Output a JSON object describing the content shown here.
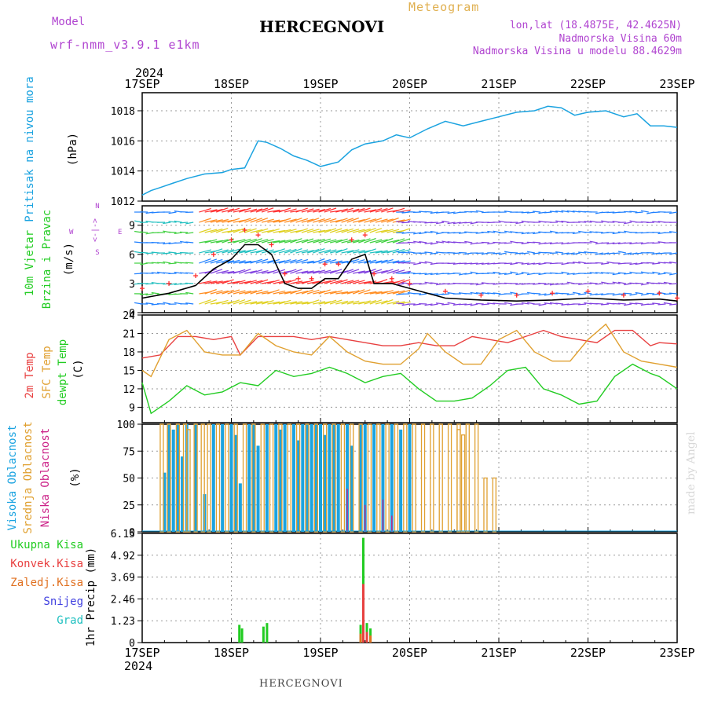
{
  "header": {
    "model_label": "Model",
    "model_name": "wrf-nmm_v3.9.1 e1km",
    "title": "HERCEGNOVI",
    "meteogram": "Meteogram",
    "lonlat": "lon,lat (18.4875E, 42.4625N)",
    "elevation": "Nadmorska Visina 60m",
    "model_elevation": "Nadmorska Visina u modelu 88.4629m",
    "year_top": "2024",
    "year_bottom": "2024",
    "footer_title": "HERCEGNOVI",
    "credit": "made by Angel"
  },
  "colors": {
    "pressure": "#1ba3e0",
    "wind_speed": "#000000",
    "gust": "#ff2a2a",
    "temp2m": "#e84040",
    "sfc_temp": "#e0a030",
    "dewpoint": "#22cc22",
    "cloud_high": "#1ba3e0",
    "cloud_mid": "#e0a030",
    "cloud_low": "#cc2288",
    "precip_total": "#22cc22",
    "precip_conv": "#e84040",
    "precip_strat": "#e07020",
    "snow": "#4040e0",
    "hail": "#20c0c0",
    "label_purple": "#b044d0"
  },
  "chart_data": [
    {
      "type": "line",
      "panel": "pressure",
      "ylabel_title": "Pritisak na nivou mora",
      "ylabel_unit": "(hPa)",
      "x_ticks": [
        "17SEP",
        "18SEP",
        "19SEP",
        "20SEP",
        "21SEP",
        "22SEP",
        "23SEP"
      ],
      "ylim": [
        1012,
        1019.2
      ],
      "y_ticks": [
        1012,
        1014,
        1016,
        1018
      ],
      "grid": true,
      "series": [
        {
          "x": [
            0,
            0.1,
            0.2,
            0.35,
            0.5,
            0.7,
            0.9,
            1.0,
            1.15,
            1.3,
            1.4,
            1.55,
            1.7,
            1.85,
            2.0,
            2.2,
            2.35,
            2.5,
            2.7,
            2.85,
            3.0,
            3.2,
            3.4,
            3.6,
            3.8,
            4.0,
            4.2,
            4.4,
            4.55,
            4.7,
            4.85,
            5.0,
            5.2,
            5.4,
            5.55,
            5.7,
            5.85,
            6.0
          ],
          "values": [
            1012.4,
            1012.7,
            1012.9,
            1013.2,
            1013.5,
            1013.8,
            1013.9,
            1014.1,
            1014.2,
            1016.0,
            1015.9,
            1015.5,
            1015.0,
            1014.7,
            1014.3,
            1014.6,
            1015.4,
            1015.8,
            1016.0,
            1016.4,
            1016.2,
            1016.8,
            1017.3,
            1017.0,
            1017.3,
            1017.6,
            1017.9,
            1018.0,
            1018.3,
            1018.2,
            1017.7,
            1017.9,
            1018.0,
            1017.6,
            1017.8,
            1017.0,
            1017.0,
            1016.9
          ]
        }
      ]
    },
    {
      "type": "line",
      "panel": "wind",
      "ylabel_title_1": "10m Vjetar",
      "ylabel_title_2": "Brzina i Pravac",
      "ylabel_unit": "(m/s)",
      "compass_ns": "<-|->",
      "compass_w": "W",
      "compass_e": "E",
      "compass_n": "N",
      "compass_s": "S",
      "ylim": [
        0,
        11
      ],
      "y_ticks": [
        0,
        3,
        6,
        9
      ],
      "series": [
        {
          "name": "speed",
          "x": [
            0,
            0.3,
            0.6,
            0.8,
            1.0,
            1.15,
            1.3,
            1.45,
            1.6,
            1.75,
            1.9,
            2.05,
            2.2,
            2.35,
            2.5,
            2.6,
            2.8,
            3.0,
            3.4,
            3.8,
            4.2,
            4.6,
            5.0,
            5.4,
            5.8,
            6.0
          ],
          "values": [
            1.5,
            2.0,
            2.8,
            4.5,
            5.5,
            7.0,
            7.0,
            6.0,
            3.0,
            2.5,
            2.5,
            3.5,
            3.5,
            5.5,
            6.0,
            3.0,
            3.0,
            2.5,
            1.5,
            1.3,
            1.2,
            1.3,
            1.5,
            1.3,
            1.4,
            1.2
          ]
        },
        {
          "name": "gust",
          "x": [
            0,
            0.3,
            0.6,
            0.8,
            1.0,
            1.15,
            1.3,
            1.45,
            1.6,
            1.75,
            1.9,
            2.05,
            2.2,
            2.35,
            2.5,
            2.6,
            2.8,
            3.0,
            3.4,
            3.8,
            4.2,
            4.6,
            5.0,
            5.4,
            5.8,
            6.0
          ],
          "values": [
            2.5,
            3.0,
            3.8,
            6.0,
            7.5,
            8.5,
            8.0,
            7.0,
            4.0,
            3.5,
            3.5,
            5.0,
            5.0,
            7.5,
            8.0,
            4.0,
            3.5,
            3.0,
            2.2,
            1.8,
            1.8,
            2.0,
            2.2,
            1.8,
            2.0,
            1.5
          ]
        }
      ]
    },
    {
      "type": "line",
      "panel": "temperature",
      "ylabel_title_1": "2m Temp",
      "ylabel_title_2": "SFC Temp",
      "ylabel_title_3": "dewpt Temp",
      "ylabel_unit": "(C)",
      "ylim": [
        6.5,
        24
      ],
      "y_ticks": [
        9,
        12,
        15,
        18,
        21,
        24
      ],
      "series": [
        {
          "name": "2m Temp",
          "x": [
            0,
            0.2,
            0.4,
            0.6,
            0.8,
            1.0,
            1.1,
            1.3,
            1.5,
            1.7,
            1.9,
            2.1,
            2.3,
            2.5,
            2.7,
            2.9,
            3.1,
            3.3,
            3.5,
            3.7,
            3.9,
            4.1,
            4.3,
            4.5,
            4.7,
            4.9,
            5.1,
            5.3,
            5.5,
            5.7,
            5.8,
            6.0
          ],
          "values": [
            17.0,
            17.5,
            20.5,
            20.5,
            20.0,
            20.5,
            17.5,
            20.5,
            20.5,
            20.5,
            20.0,
            20.5,
            20.0,
            19.5,
            19.0,
            19.0,
            19.5,
            19.0,
            19.0,
            20.5,
            20.0,
            19.5,
            20.5,
            21.5,
            20.5,
            20.0,
            19.5,
            21.5,
            21.5,
            19.0,
            19.5,
            19.3
          ]
        },
        {
          "name": "SFC Temp",
          "x": [
            0,
            0.1,
            0.3,
            0.5,
            0.7,
            0.9,
            1.1,
            1.3,
            1.5,
            1.7,
            1.9,
            2.1,
            2.3,
            2.5,
            2.7,
            2.9,
            3.1,
            3.2,
            3.4,
            3.6,
            3.8,
            4.0,
            4.2,
            4.4,
            4.6,
            4.8,
            5.0,
            5.2,
            5.4,
            5.6,
            5.8,
            6.0
          ],
          "values": [
            15.0,
            14.0,
            20.0,
            21.5,
            18.0,
            17.5,
            17.5,
            21.0,
            19.0,
            18.0,
            17.5,
            20.5,
            18.0,
            16.5,
            16.0,
            16.0,
            18.5,
            21.0,
            18.0,
            16.0,
            16.0,
            20.0,
            21.5,
            18.0,
            16.5,
            16.5,
            20.0,
            22.5,
            18.0,
            16.5,
            16.0,
            15.5
          ]
        },
        {
          "name": "dewpt Temp",
          "x": [
            0,
            0.1,
            0.3,
            0.5,
            0.7,
            0.9,
            1.1,
            1.3,
            1.5,
            1.7,
            1.9,
            2.1,
            2.3,
            2.5,
            2.7,
            2.9,
            3.1,
            3.3,
            3.5,
            3.7,
            3.9,
            4.1,
            4.3,
            4.5,
            4.7,
            4.9,
            5.1,
            5.3,
            5.5,
            5.7,
            5.8,
            6.0
          ],
          "values": [
            13.0,
            8.0,
            10.0,
            12.5,
            11.0,
            11.5,
            13.0,
            12.5,
            15.0,
            14.0,
            14.5,
            15.5,
            14.5,
            13.0,
            14.0,
            14.5,
            12.0,
            10.0,
            10.0,
            10.5,
            12.5,
            15.0,
            15.5,
            12.0,
            11.0,
            9.5,
            10.0,
            14.0,
            16.0,
            14.5,
            14.0,
            12.0
          ]
        }
      ]
    },
    {
      "type": "bar",
      "panel": "cloud",
      "ylabel_title_1": "Visoka Oblacnost",
      "ylabel_title_2": "Srednja Oblacnost",
      "ylabel_title_3": "Niska Oblacnost",
      "ylabel_unit": "(%)",
      "ylim": [
        0,
        100
      ],
      "y_ticks": [
        0,
        25,
        50,
        75,
        100
      ],
      "series": [
        {
          "name": "Visoka Oblacnost",
          "x": [
            0.25,
            0.3,
            0.35,
            0.4,
            0.45,
            0.5,
            0.6,
            0.7,
            0.8,
            0.9,
            1.0,
            1.05,
            1.1,
            1.2,
            1.25,
            1.3,
            1.4,
            1.5,
            1.55,
            1.6,
            1.7,
            1.75,
            1.8,
            1.85,
            1.9,
            1.95,
            2.0,
            2.05,
            2.1,
            2.15,
            2.2,
            2.3,
            2.35,
            2.45,
            2.5,
            2.6,
            2.7,
            2.8,
            2.9,
            3.0
          ],
          "values": [
            55,
            100,
            95,
            100,
            70,
            100,
            100,
            35,
            100,
            100,
            100,
            90,
            45,
            100,
            100,
            80,
            100,
            100,
            95,
            100,
            100,
            85,
            100,
            100,
            100,
            100,
            100,
            90,
            100,
            100,
            100,
            100,
            80,
            100,
            100,
            100,
            100,
            100,
            95,
            100
          ]
        },
        {
          "name": "Srednja Oblacnost",
          "x": [
            0.22,
            0.3,
            0.4,
            0.48,
            0.52,
            0.6,
            0.68,
            0.75,
            0.85,
            0.95,
            1.05,
            1.15,
            1.25,
            1.35,
            1.45,
            1.55,
            1.65,
            1.75,
            1.85,
            1.95,
            2.05,
            2.15,
            2.25,
            2.35,
            2.45,
            2.55,
            2.65,
            2.75,
            2.85,
            2.95,
            3.05,
            3.15,
            3.25,
            3.35,
            3.45,
            3.55,
            3.65,
            3.75,
            3.85,
            3.95,
            3.55,
            3.6
          ],
          "values": [
            100,
            100,
            100,
            100,
            95,
            100,
            100,
            100,
            100,
            100,
            100,
            100,
            100,
            100,
            100,
            100,
            100,
            100,
            100,
            100,
            100,
            100,
            100,
            100,
            100,
            100,
            100,
            100,
            100,
            100,
            100,
            100,
            100,
            100,
            100,
            100,
            100,
            100,
            50,
            50,
            95,
            90
          ]
        },
        {
          "name": "Niska Oblacnost",
          "x": [
            2.3,
            2.5,
            2.7,
            2.8
          ],
          "values": [
            40,
            25,
            30,
            15
          ]
        }
      ]
    },
    {
      "type": "bar",
      "panel": "precip",
      "ylabel_title": "1hr Precip",
      "ylabel_unit": "(mm)",
      "legend": [
        "Ukupna Kisa",
        "Konvek.Kisa",
        "Zaledj.Kisa",
        "Snijeg",
        "Grad"
      ],
      "ylim": [
        0,
        6.15
      ],
      "y_tick_labels": [
        "0",
        "1.23",
        "2.46",
        "3.69",
        "4.92",
        "6.15"
      ],
      "y_tick_values": [
        0,
        1.23,
        2.46,
        3.69,
        4.92,
        6.15
      ],
      "series": [
        {
          "name": "Ukupna Kisa",
          "x": [
            1.09,
            1.12,
            1.36,
            1.4,
            2.45,
            2.48,
            2.52,
            2.56
          ],
          "values": [
            1.0,
            0.8,
            0.9,
            1.1,
            1.0,
            5.9,
            1.1,
            0.8
          ]
        },
        {
          "name": "Konvek.Kisa",
          "x": [
            2.48,
            2.52
          ],
          "values": [
            3.3,
            0.6
          ]
        },
        {
          "name": "Zaledj.Kisa",
          "x": [
            2.45,
            2.56
          ],
          "values": [
            0.5,
            0.4
          ]
        }
      ]
    }
  ]
}
